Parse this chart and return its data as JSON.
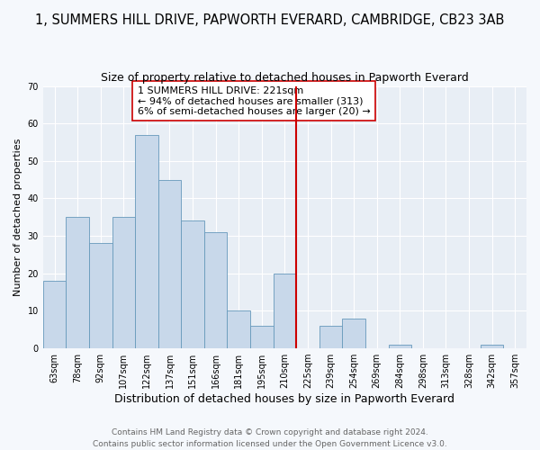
{
  "title": "1, SUMMERS HILL DRIVE, PAPWORTH EVERARD, CAMBRIDGE, CB23 3AB",
  "subtitle": "Size of property relative to detached houses in Papworth Everard",
  "xlabel": "Distribution of detached houses by size in Papworth Everard",
  "ylabel": "Number of detached properties",
  "bar_labels": [
    "63sqm",
    "78sqm",
    "92sqm",
    "107sqm",
    "122sqm",
    "137sqm",
    "151sqm",
    "166sqm",
    "181sqm",
    "195sqm",
    "210sqm",
    "225sqm",
    "239sqm",
    "254sqm",
    "269sqm",
    "284sqm",
    "298sqm",
    "313sqm",
    "328sqm",
    "342sqm",
    "357sqm"
  ],
  "bar_values": [
    18,
    35,
    28,
    35,
    57,
    45,
    34,
    31,
    10,
    6,
    20,
    0,
    6,
    8,
    0,
    1,
    0,
    0,
    0,
    1,
    0
  ],
  "bar_color": "#c8d8ea",
  "bar_edge_color": "#6699bb",
  "vline_color": "#cc0000",
  "annotation_text": "1 SUMMERS HILL DRIVE: 221sqm\n← 94% of detached houses are smaller (313)\n6% of semi-detached houses are larger (20) →",
  "annotation_box_facecolor": "white",
  "annotation_box_edgecolor": "#cc0000",
  "ylim": [
    0,
    70
  ],
  "yticks": [
    0,
    10,
    20,
    30,
    40,
    50,
    60,
    70
  ],
  "plot_bg_color": "#e8eef5",
  "fig_bg_color": "#f5f8fc",
  "grid_color": "white",
  "footer_line1": "Contains HM Land Registry data © Crown copyright and database right 2024.",
  "footer_line2": "Contains public sector information licensed under the Open Government Licence v3.0.",
  "title_fontsize": 10.5,
  "subtitle_fontsize": 9,
  "xlabel_fontsize": 9,
  "ylabel_fontsize": 8,
  "tick_fontsize": 7,
  "annotation_fontsize": 8,
  "footer_fontsize": 6.5,
  "vline_bar_index": 11
}
